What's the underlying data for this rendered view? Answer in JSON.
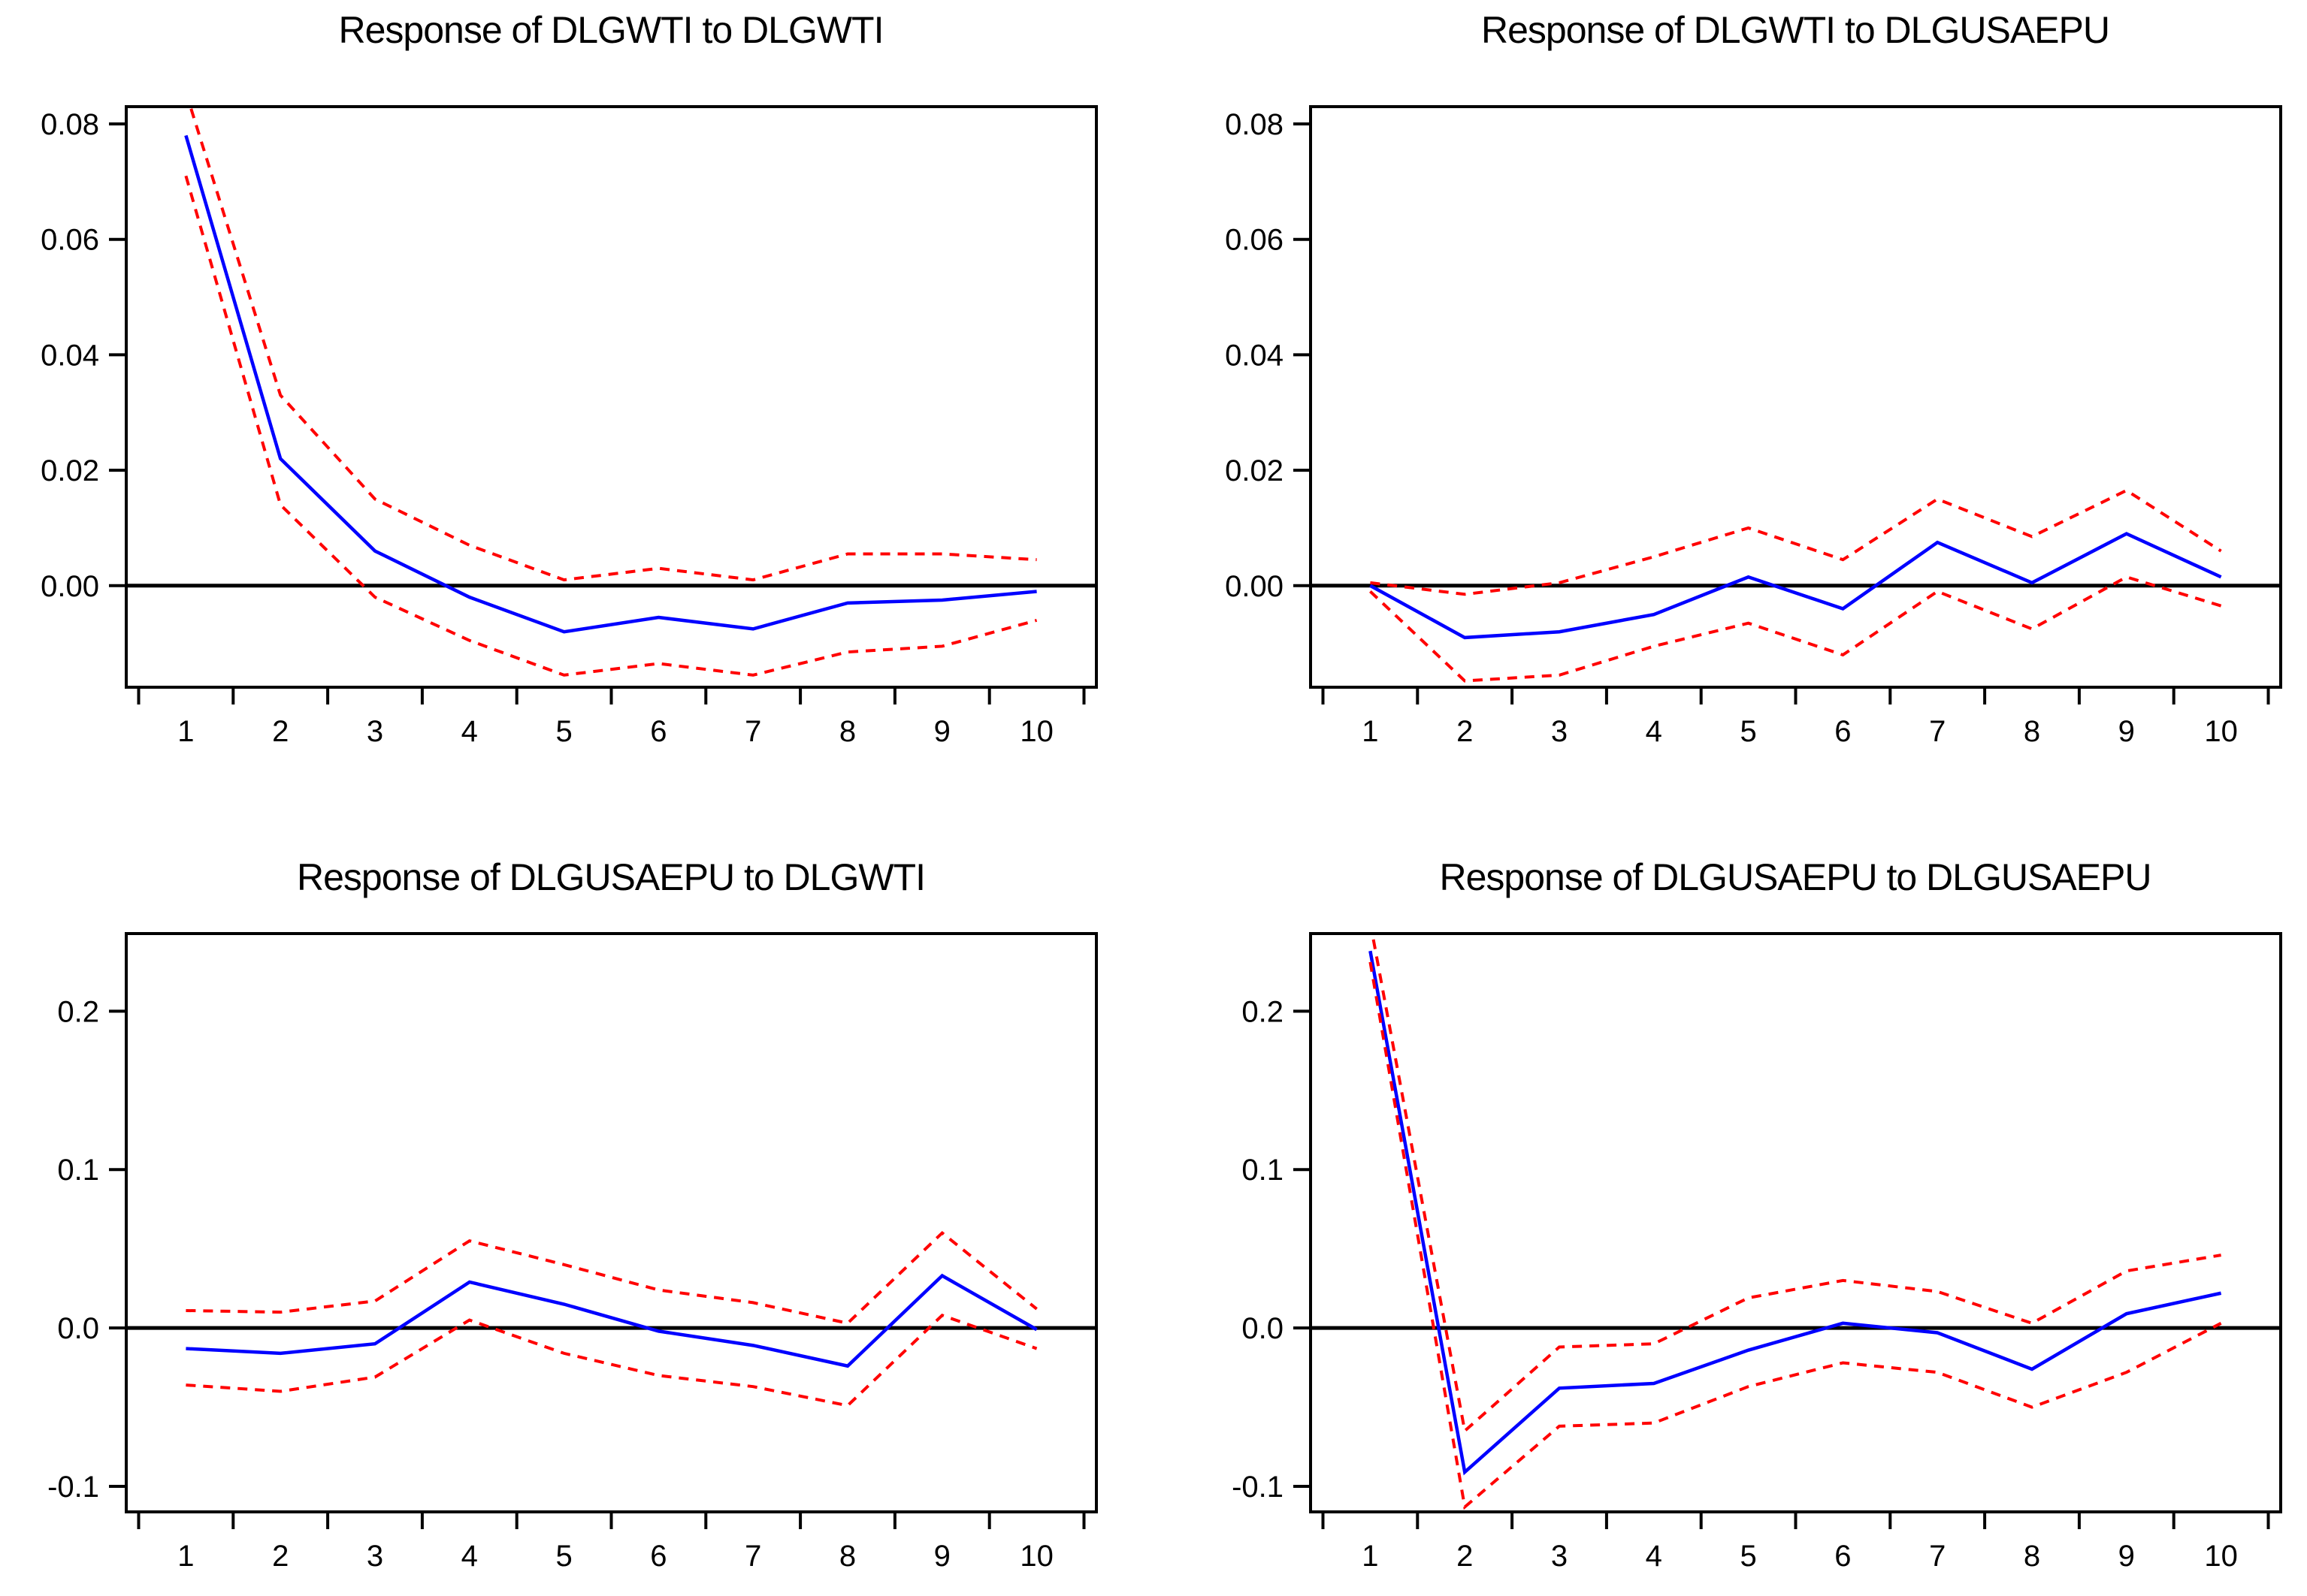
{
  "figure": {
    "background": "#FFFFFF",
    "axis_color": "#000000",
    "text_color": "#000000",
    "zero_line_color": "#000000",
    "point_estimate_color": "#0000FF",
    "band_color": "#FF0000"
  },
  "chart_data": [
    {
      "type": "line",
      "title": "Response of DLGWTI to DLGWTI",
      "x": [
        1,
        2,
        3,
        4,
        5,
        6,
        7,
        8,
        9,
        10
      ],
      "xlim": [
        0.5,
        10.5
      ],
      "ylim": [
        -0.0176,
        0.083
      ],
      "grid": false,
      "legend": "none",
      "zero_line": true,
      "yticks": [
        {
          "value": 0.08,
          "label": "0.08"
        },
        {
          "value": 0.06,
          "label": "0.06"
        },
        {
          "value": 0.04,
          "label": "0.04"
        },
        {
          "value": 0.02,
          "label": "0.02"
        },
        {
          "value": 0.0,
          "label": "0.00"
        }
      ],
      "xticks": [
        {
          "value": 1,
          "label": "1"
        },
        {
          "value": 2,
          "label": "2"
        },
        {
          "value": 3,
          "label": "3"
        },
        {
          "value": 4,
          "label": "4"
        },
        {
          "value": 5,
          "label": "5"
        },
        {
          "value": 6,
          "label": "6"
        },
        {
          "value": 7,
          "label": "7"
        },
        {
          "value": 8,
          "label": "8"
        },
        {
          "value": 9,
          "label": "9"
        },
        {
          "value": 10,
          "label": "10"
        }
      ],
      "series": [
        {
          "name": "response",
          "label": "impulse response",
          "color": "#0000FF",
          "line": "solid",
          "values": [
            0.078,
            0.022,
            0.006,
            -0.002,
            -0.008,
            -0.0055,
            -0.0075,
            -0.003,
            -0.0025,
            -0.001
          ]
        },
        {
          "name": "upper-band",
          "label": "+2 S.E.",
          "color": "#FF0000",
          "line": "dashed",
          "values": [
            0.0855,
            0.033,
            0.015,
            0.007,
            0.001,
            0.003,
            0.001,
            0.0055,
            0.0055,
            0.0045
          ]
        },
        {
          "name": "lower-band",
          "label": "-2 S.E.",
          "color": "#FF0000",
          "line": "dashed",
          "values": [
            0.071,
            0.014,
            -0.002,
            -0.0095,
            -0.0155,
            -0.0135,
            -0.0155,
            -0.0115,
            -0.0105,
            -0.006
          ]
        }
      ]
    },
    {
      "type": "line",
      "title": "Response of DLGWTI to DLGUSAEPU",
      "x": [
        1,
        2,
        3,
        4,
        5,
        6,
        7,
        8,
        9,
        10
      ],
      "xlim": [
        0.5,
        10.5
      ],
      "ylim": [
        -0.0176,
        0.083
      ],
      "grid": false,
      "legend": "none",
      "zero_line": true,
      "yticks": [
        {
          "value": 0.08,
          "label": "0.08"
        },
        {
          "value": 0.06,
          "label": "0.06"
        },
        {
          "value": 0.04,
          "label": "0.04"
        },
        {
          "value": 0.02,
          "label": "0.02"
        },
        {
          "value": 0.0,
          "label": "0.00"
        }
      ],
      "xticks": [
        {
          "value": 1,
          "label": "1"
        },
        {
          "value": 2,
          "label": "2"
        },
        {
          "value": 3,
          "label": "3"
        },
        {
          "value": 4,
          "label": "4"
        },
        {
          "value": 5,
          "label": "5"
        },
        {
          "value": 6,
          "label": "6"
        },
        {
          "value": 7,
          "label": "7"
        },
        {
          "value": 8,
          "label": "8"
        },
        {
          "value": 9,
          "label": "9"
        },
        {
          "value": 10,
          "label": "10"
        }
      ],
      "series": [
        {
          "name": "response",
          "label": "impulse response",
          "color": "#0000FF",
          "line": "solid",
          "values": [
            0.0,
            -0.009,
            -0.008,
            -0.005,
            0.0015,
            -0.004,
            0.0075,
            0.0005,
            0.009,
            0.0015
          ]
        },
        {
          "name": "upper-band",
          "label": "+2 S.E.",
          "color": "#FF0000",
          "line": "dashed",
          "values": [
            0.0005,
            -0.0015,
            0.0005,
            0.005,
            0.01,
            0.0045,
            0.015,
            0.0085,
            0.0165,
            0.006
          ]
        },
        {
          "name": "lower-band",
          "label": "-2 S.E.",
          "color": "#FF0000",
          "line": "dashed",
          "values": [
            -0.001,
            -0.0165,
            -0.0155,
            -0.0105,
            -0.0065,
            -0.012,
            -0.001,
            -0.0075,
            0.0015,
            -0.0035
          ]
        }
      ]
    },
    {
      "type": "line",
      "title": "Response of DLGUSAEPU to DLGWTI",
      "x": [
        1,
        2,
        3,
        4,
        5,
        6,
        7,
        8,
        9,
        10
      ],
      "xlim": [
        0.5,
        10.5
      ],
      "ylim": [
        -0.1161,
        0.249
      ],
      "grid": false,
      "legend": "none",
      "zero_line": true,
      "yticks": [
        {
          "value": 0.2,
          "label": "0.2"
        },
        {
          "value": 0.1,
          "label": "0.1"
        },
        {
          "value": 0.0,
          "label": "0.0"
        },
        {
          "value": -0.1,
          "label": "-0.1"
        }
      ],
      "xticks": [
        {
          "value": 1,
          "label": "1"
        },
        {
          "value": 2,
          "label": "2"
        },
        {
          "value": 3,
          "label": "3"
        },
        {
          "value": 4,
          "label": "4"
        },
        {
          "value": 5,
          "label": "5"
        },
        {
          "value": 6,
          "label": "6"
        },
        {
          "value": 7,
          "label": "7"
        },
        {
          "value": 8,
          "label": "8"
        },
        {
          "value": 9,
          "label": "9"
        },
        {
          "value": 10,
          "label": "10"
        }
      ],
      "series": [
        {
          "name": "response",
          "label": "impulse response",
          "color": "#0000FF",
          "line": "solid",
          "values": [
            -0.013,
            -0.016,
            -0.01,
            0.029,
            0.015,
            -0.002,
            -0.011,
            -0.024,
            0.033,
            -0.001
          ]
        },
        {
          "name": "upper-band",
          "label": "+2 S.E.",
          "color": "#FF0000",
          "line": "dashed",
          "values": [
            0.011,
            0.01,
            0.017,
            0.055,
            0.04,
            0.024,
            0.016,
            0.003,
            0.06,
            0.012
          ]
        },
        {
          "name": "lower-band",
          "label": "-2 S.E.",
          "color": "#FF0000",
          "line": "dashed",
          "values": [
            -0.036,
            -0.04,
            -0.031,
            0.005,
            -0.016,
            -0.03,
            -0.037,
            -0.049,
            0.008,
            -0.013
          ]
        }
      ]
    },
    {
      "type": "line",
      "title": "Response of DLGUSAEPU to DLGUSAEPU",
      "x": [
        1,
        2,
        3,
        4,
        5,
        6,
        7,
        8,
        9,
        10
      ],
      "xlim": [
        0.5,
        10.5
      ],
      "ylim": [
        -0.1161,
        0.249
      ],
      "grid": false,
      "legend": "none",
      "zero_line": true,
      "yticks": [
        {
          "value": 0.2,
          "label": "0.2"
        },
        {
          "value": 0.1,
          "label": "0.1"
        },
        {
          "value": 0.0,
          "label": "0.0"
        },
        {
          "value": -0.1,
          "label": "-0.1"
        }
      ],
      "xticks": [
        {
          "value": 1,
          "label": "1"
        },
        {
          "value": 2,
          "label": "2"
        },
        {
          "value": 3,
          "label": "3"
        },
        {
          "value": 4,
          "label": "4"
        },
        {
          "value": 5,
          "label": "5"
        },
        {
          "value": 6,
          "label": "6"
        },
        {
          "value": 7,
          "label": "7"
        },
        {
          "value": 8,
          "label": "8"
        },
        {
          "value": 9,
          "label": "9"
        },
        {
          "value": 10,
          "label": "10"
        }
      ],
      "series": [
        {
          "name": "response",
          "label": "impulse response",
          "color": "#0000FF",
          "line": "solid",
          "values": [
            0.238,
            -0.091,
            -0.038,
            -0.035,
            -0.014,
            0.003,
            -0.003,
            -0.026,
            0.009,
            0.022
          ]
        },
        {
          "name": "upper-band",
          "label": "+2 S.E.",
          "color": "#FF0000",
          "line": "dashed",
          "values": [
            0.256,
            -0.065,
            -0.012,
            -0.01,
            0.019,
            0.03,
            0.023,
            0.003,
            0.036,
            0.046
          ]
        },
        {
          "name": "lower-band",
          "label": "-2 S.E.",
          "color": "#FF0000",
          "line": "dashed",
          "values": [
            0.231,
            -0.113,
            -0.062,
            -0.06,
            -0.037,
            -0.022,
            -0.028,
            -0.05,
            -0.028,
            0.003
          ]
        }
      ]
    }
  ]
}
